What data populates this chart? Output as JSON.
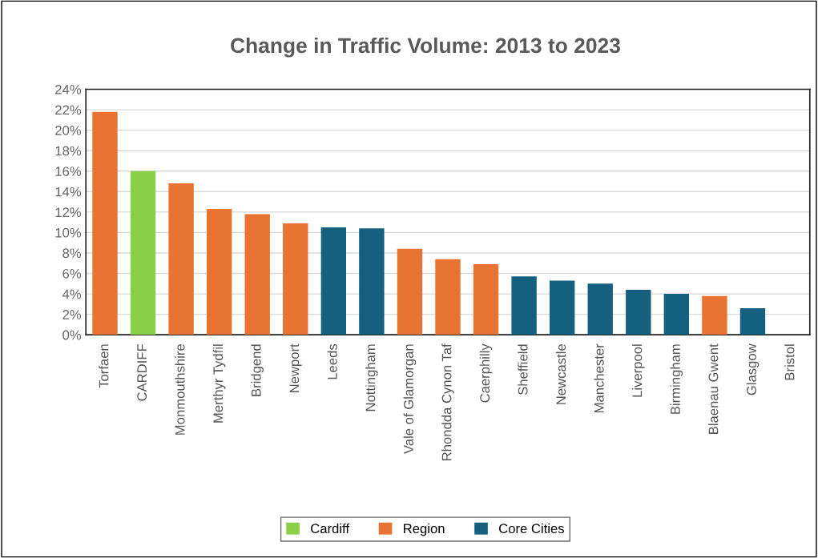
{
  "chart_data": {
    "type": "bar",
    "title": "Change in Traffic Volume: 2013 to 2023",
    "categories": [
      "Torfaen",
      "CARDIFF",
      "Monmouthshire",
      "Merthyr Tydfil",
      "Bridgend",
      "Newport",
      "Leeds",
      "Nottingham",
      "Vale of Glamorgan",
      "Rhondda Cynon Taf",
      "Caerphilly",
      "Sheffield",
      "Newcastle",
      "Manchester",
      "Liverpool",
      "Birmingham",
      "Blaenau Gwent",
      "Glasgow",
      "Bristol"
    ],
    "series": [
      {
        "name": "Cardiff",
        "color": "#8cd04a",
        "values": [
          null,
          16.0,
          null,
          null,
          null,
          null,
          null,
          null,
          null,
          null,
          null,
          null,
          null,
          null,
          null,
          null,
          null,
          null,
          null
        ]
      },
      {
        "name": "Region",
        "color": "#e87332",
        "values": [
          21.8,
          null,
          14.8,
          12.3,
          11.8,
          10.9,
          null,
          null,
          8.4,
          7.4,
          6.9,
          null,
          null,
          null,
          null,
          null,
          3.8,
          null,
          null
        ]
      },
      {
        "name": "Core Cities",
        "color": "#16607f",
        "values": [
          null,
          null,
          null,
          null,
          null,
          null,
          10.5,
          10.4,
          null,
          null,
          null,
          5.7,
          5.3,
          5.0,
          4.4,
          4.0,
          null,
          2.6,
          0
        ]
      }
    ],
    "ylim": [
      0,
      24
    ],
    "yticks": [
      {
        "value": 0,
        "label": "0%"
      },
      {
        "value": 2,
        "label": "2%"
      },
      {
        "value": 4,
        "label": "4%"
      },
      {
        "value": 6,
        "label": "6%"
      },
      {
        "value": 8,
        "label": "8%"
      },
      {
        "value": 10,
        "label": "10%"
      },
      {
        "value": 12,
        "label": "12%"
      },
      {
        "value": 14,
        "label": "14%"
      },
      {
        "value": 16,
        "label": "16%"
      },
      {
        "value": 18,
        "label": "18%"
      },
      {
        "value": 20,
        "label": "20%"
      },
      {
        "value": 22,
        "label": "22%"
      },
      {
        "value": 24,
        "label": "24%"
      }
    ],
    "grid": "y",
    "legend": "bottom"
  }
}
